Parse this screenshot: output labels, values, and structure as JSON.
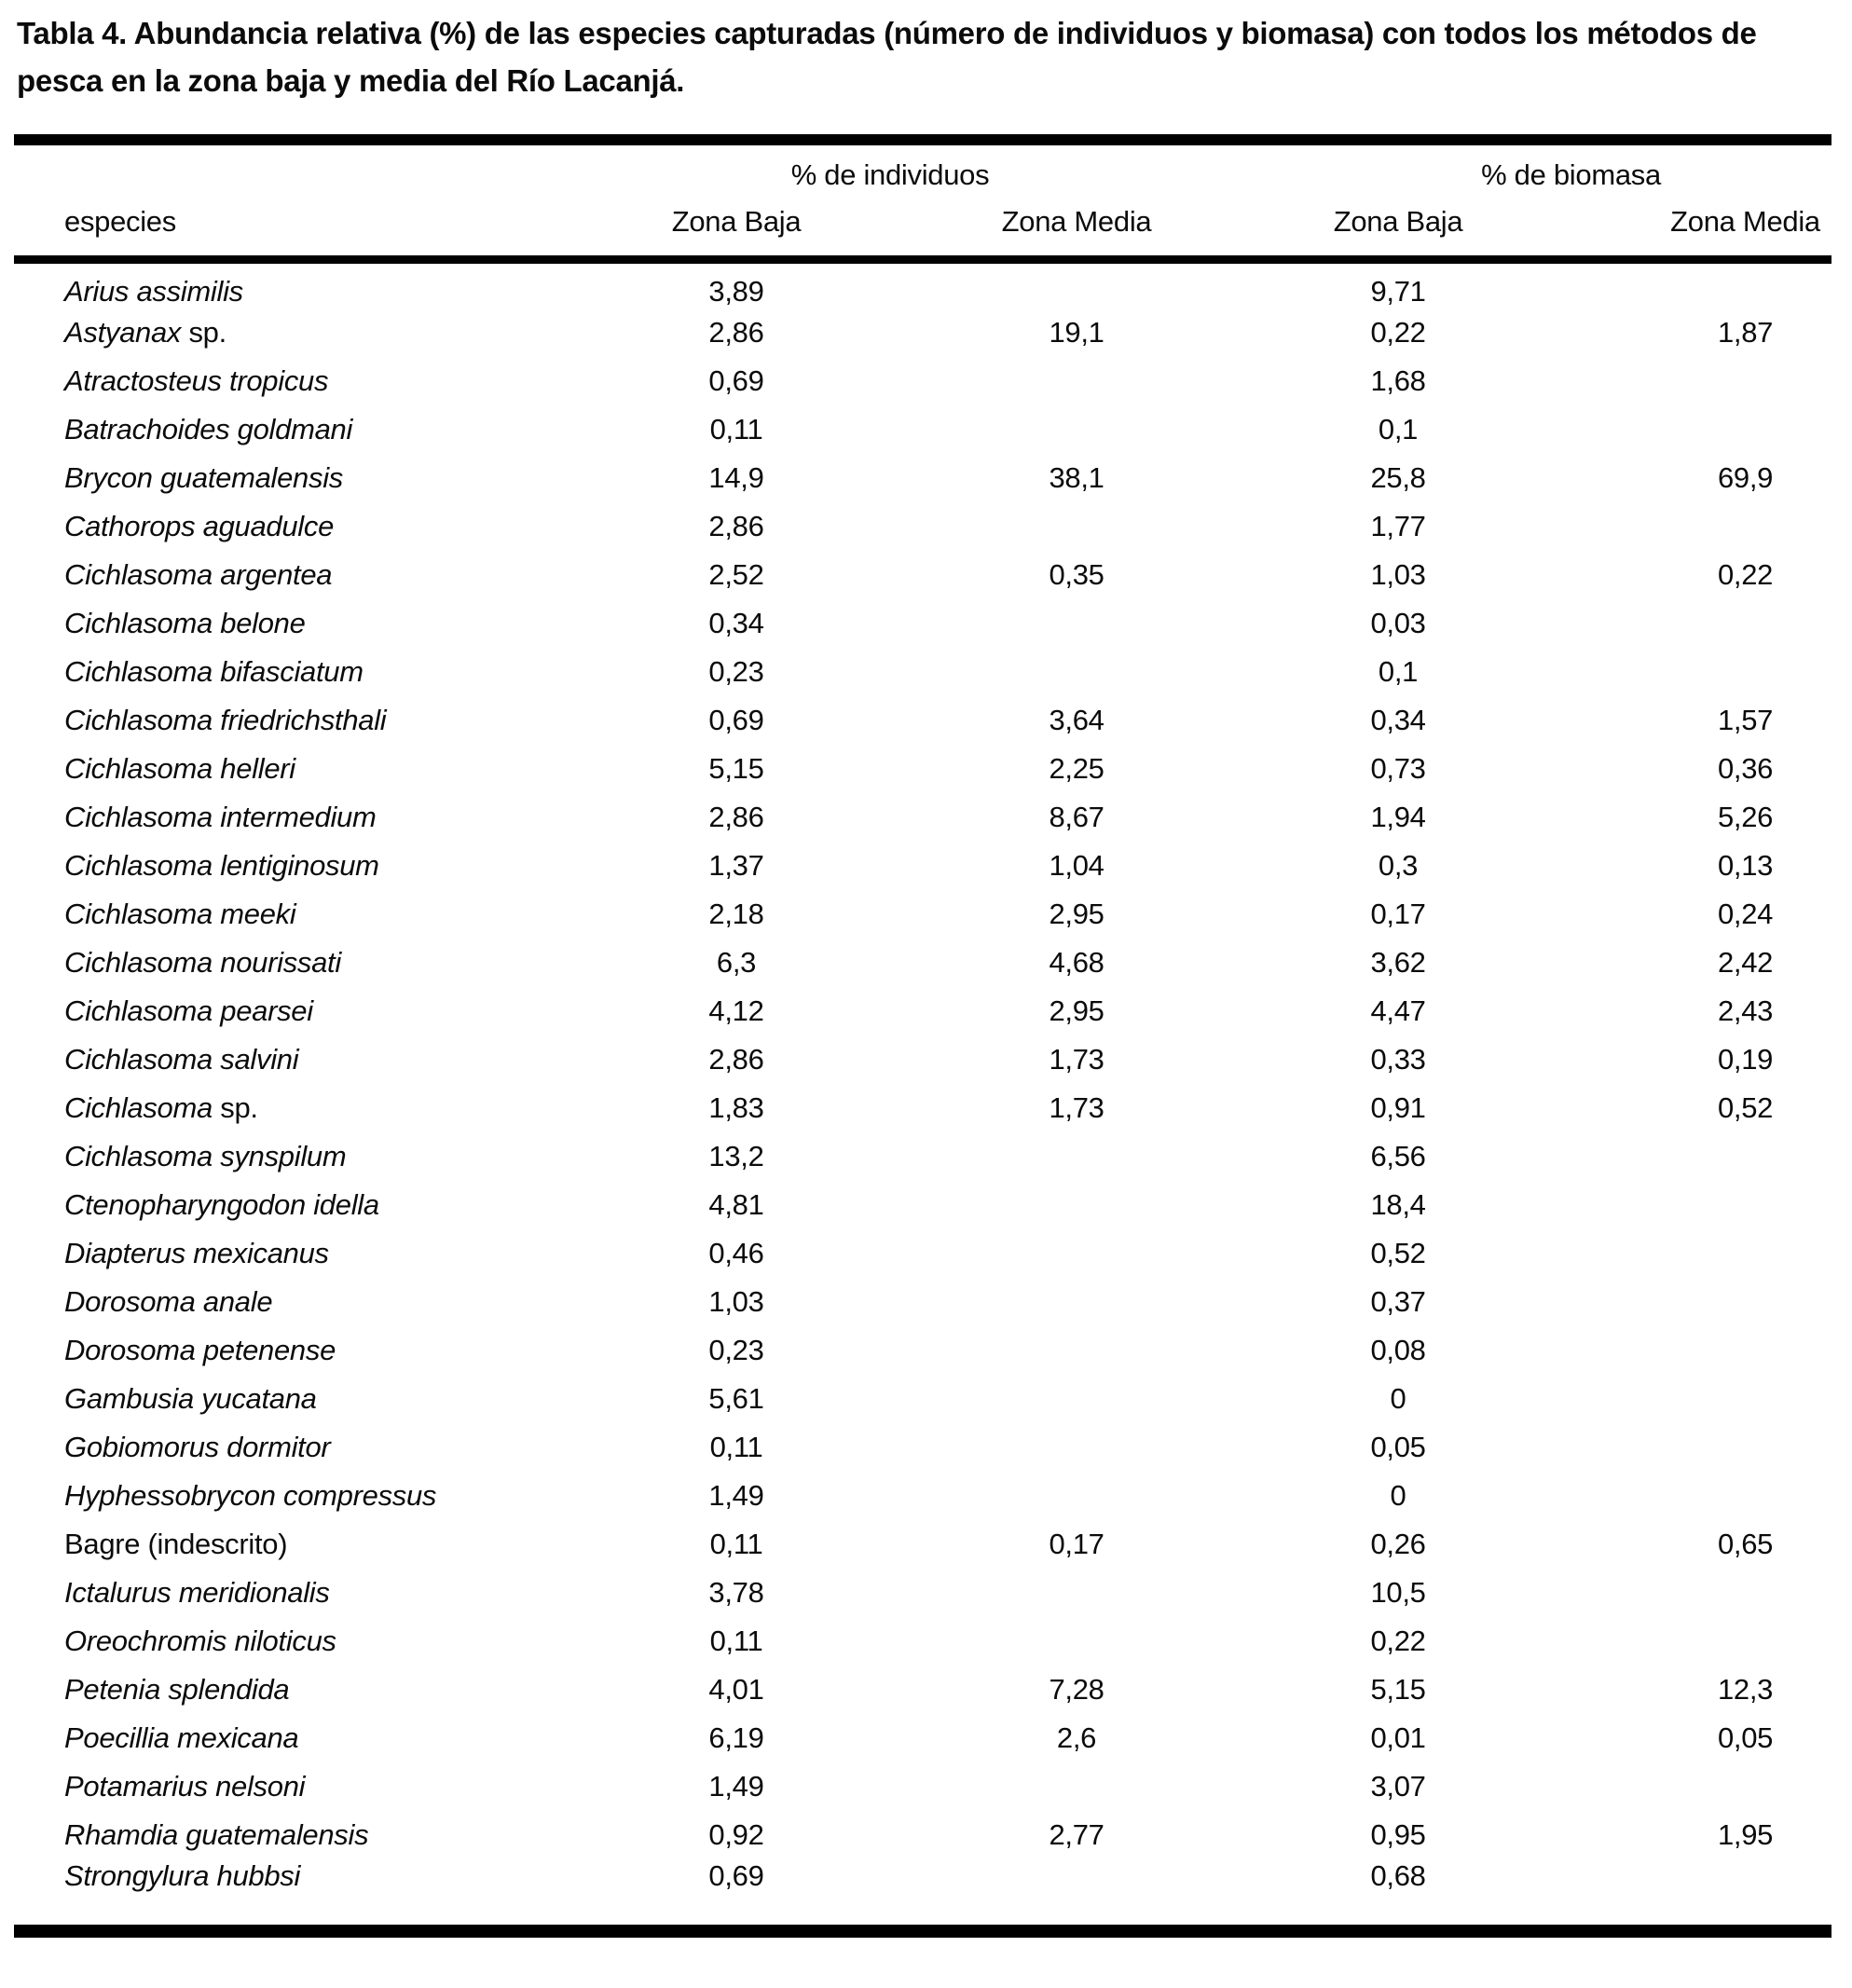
{
  "caption": "Tabla 4. Abundancia relativa (%) de las especies capturadas (número de individuos y biomasa) con todos los métodos de pesca en la zona baja y media del Río Lacanjá.",
  "colors": {
    "text": "#0b0b0b",
    "background": "#ffffff",
    "rule": "#000000"
  },
  "table": {
    "group_headers": [
      {
        "label": "% de individuos"
      },
      {
        "label": "% de biomasa"
      }
    ],
    "col_headers": {
      "species": "especies",
      "ind_baja": "Zona Baja",
      "ind_media": "Zona Media",
      "biom_baja": "Zona Baja",
      "biom_media": "Zona Media"
    },
    "rows": [
      {
        "name_italic": "Arius assimilis",
        "name_roman": "",
        "ind_baja": "3,89",
        "ind_media": "",
        "biom_baja": "9,71",
        "biom_media": ""
      },
      {
        "name_italic": "Astyanax",
        "name_roman": "sp.",
        "ind_baja": "2,86",
        "ind_media": "19,1",
        "biom_baja": "0,22",
        "biom_media": "1,87"
      },
      {
        "name_italic": "Atractosteus tropicus",
        "name_roman": "",
        "ind_baja": "0,69",
        "ind_media": "",
        "biom_baja": "1,68",
        "biom_media": ""
      },
      {
        "name_italic": "Batrachoides goldmani",
        "name_roman": "",
        "ind_baja": "0,11",
        "ind_media": "",
        "biom_baja": "0,1",
        "biom_media": ""
      },
      {
        "name_italic": "Brycon guatemalensis",
        "name_roman": "",
        "ind_baja": "14,9",
        "ind_media": "38,1",
        "biom_baja": "25,8",
        "biom_media": "69,9"
      },
      {
        "name_italic": "Cathorops aguadulce",
        "name_roman": "",
        "ind_baja": "2,86",
        "ind_media": "",
        "biom_baja": "1,77",
        "biom_media": ""
      },
      {
        "name_italic": "Cichlasoma argentea",
        "name_roman": "",
        "ind_baja": "2,52",
        "ind_media": "0,35",
        "biom_baja": "1,03",
        "biom_media": "0,22"
      },
      {
        "name_italic": "Cichlasoma belone",
        "name_roman": "",
        "ind_baja": "0,34",
        "ind_media": "",
        "biom_baja": "0,03",
        "biom_media": ""
      },
      {
        "name_italic": "Cichlasoma bifasciatum",
        "name_roman": "",
        "ind_baja": "0,23",
        "ind_media": "",
        "biom_baja": "0,1",
        "biom_media": ""
      },
      {
        "name_italic": "Cichlasoma friedrichsthali",
        "name_roman": "",
        "ind_baja": "0,69",
        "ind_media": "3,64",
        "biom_baja": "0,34",
        "biom_media": "1,57"
      },
      {
        "name_italic": "Cichlasoma helleri",
        "name_roman": "",
        "ind_baja": "5,15",
        "ind_media": "2,25",
        "biom_baja": "0,73",
        "biom_media": "0,36"
      },
      {
        "name_italic": "Cichlasoma intermedium",
        "name_roman": "",
        "ind_baja": "2,86",
        "ind_media": "8,67",
        "biom_baja": "1,94",
        "biom_media": "5,26"
      },
      {
        "name_italic": "Cichlasoma lentiginosum",
        "name_roman": "",
        "ind_baja": "1,37",
        "ind_media": "1,04",
        "biom_baja": "0,3",
        "biom_media": "0,13"
      },
      {
        "name_italic": "Cichlasoma meeki",
        "name_roman": "",
        "ind_baja": "2,18",
        "ind_media": "2,95",
        "biom_baja": "0,17",
        "biom_media": "0,24"
      },
      {
        "name_italic": "Cichlasoma nourissati",
        "name_roman": "",
        "ind_baja": "6,3",
        "ind_media": "4,68",
        "biom_baja": "3,62",
        "biom_media": "2,42"
      },
      {
        "name_italic": "Cichlasoma pearsei",
        "name_roman": "",
        "ind_baja": "4,12",
        "ind_media": "2,95",
        "biom_baja": "4,47",
        "biom_media": "2,43"
      },
      {
        "name_italic": "Cichlasoma salvini",
        "name_roman": "",
        "ind_baja": "2,86",
        "ind_media": "1,73",
        "biom_baja": "0,33",
        "biom_media": "0,19"
      },
      {
        "name_italic": "Cichlasoma",
        "name_roman": "sp.",
        "ind_baja": "1,83",
        "ind_media": "1,73",
        "biom_baja": "0,91",
        "biom_media": "0,52"
      },
      {
        "name_italic": "Cichlasoma synspilum",
        "name_roman": "",
        "ind_baja": "13,2",
        "ind_media": "",
        "biom_baja": "6,56",
        "biom_media": ""
      },
      {
        "name_italic": "Ctenopharyngodon idella",
        "name_roman": "",
        "ind_baja": "4,81",
        "ind_media": "",
        "biom_baja": "18,4",
        "biom_media": ""
      },
      {
        "name_italic": "Diapterus mexicanus",
        "name_roman": "",
        "ind_baja": "0,46",
        "ind_media": "",
        "biom_baja": "0,52",
        "biom_media": ""
      },
      {
        "name_italic": "Dorosoma anale",
        "name_roman": "",
        "ind_baja": "1,03",
        "ind_media": "",
        "biom_baja": "0,37",
        "biom_media": ""
      },
      {
        "name_italic": "Dorosoma petenense",
        "name_roman": "",
        "ind_baja": "0,23",
        "ind_media": "",
        "biom_baja": "0,08",
        "biom_media": ""
      },
      {
        "name_italic": "Gambusia yucatana",
        "name_roman": "",
        "ind_baja": "5,61",
        "ind_media": "",
        "biom_baja": "0",
        "biom_media": ""
      },
      {
        "name_italic": "Gobiomorus dormitor",
        "name_roman": "",
        "ind_baja": "0,11",
        "ind_media": "",
        "biom_baja": "0,05",
        "biom_media": ""
      },
      {
        "name_italic": "Hyphessobrycon compressus",
        "name_roman": "",
        "ind_baja": "1,49",
        "ind_media": "",
        "biom_baja": "0",
        "biom_media": ""
      },
      {
        "name_italic": "",
        "name_roman": "Bagre (indescrito)",
        "ind_baja": "0,11",
        "ind_media": "0,17",
        "biom_baja": "0,26",
        "biom_media": "0,65"
      },
      {
        "name_italic": "Ictalurus meridionalis",
        "name_roman": "",
        "ind_baja": "3,78",
        "ind_media": "",
        "biom_baja": "10,5",
        "biom_media": ""
      },
      {
        "name_italic": "Oreochromis niloticus",
        "name_roman": "",
        "ind_baja": "0,11",
        "ind_media": "",
        "biom_baja": "0,22",
        "biom_media": ""
      },
      {
        "name_italic": "Petenia splendida",
        "name_roman": "",
        "ind_baja": "4,01",
        "ind_media": "7,28",
        "biom_baja": "5,15",
        "biom_media": "12,3"
      },
      {
        "name_italic": "Poecillia mexicana",
        "name_roman": "",
        "ind_baja": "6,19",
        "ind_media": "2,6",
        "biom_baja": "0,01",
        "biom_media": "0,05"
      },
      {
        "name_italic": "Potamarius nelsoni",
        "name_roman": "",
        "ind_baja": "1,49",
        "ind_media": "",
        "biom_baja": "3,07",
        "biom_media": ""
      },
      {
        "name_italic": "Rhamdia guatemalensis",
        "name_roman": "",
        "ind_baja": "0,92",
        "ind_media": "2,77",
        "biom_baja": "0,95",
        "biom_media": "1,95"
      },
      {
        "name_italic": "Strongylura hubbsi",
        "name_roman": "",
        "ind_baja": "0,69",
        "ind_media": "",
        "biom_baja": "0,68",
        "biom_media": ""
      }
    ]
  }
}
